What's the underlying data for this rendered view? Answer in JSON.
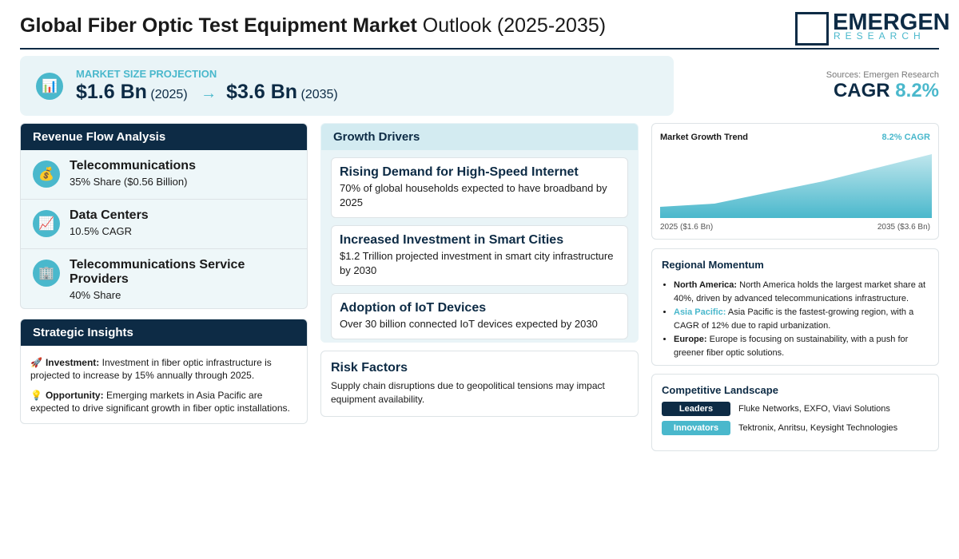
{
  "header": {
    "title_bold": "Global Fiber Optic Test Equipment Market",
    "title_rest": "Outlook (2025-2035)",
    "logo_main": "EMERGEN",
    "logo_sub": "RESEARCH"
  },
  "projection": {
    "icon": "📊",
    "label": "MARKET SIZE PROJECTION",
    "start_value": "$1.6 Bn",
    "start_year": "(2025)",
    "arrow": "→",
    "end_value": "$3.6 Bn",
    "end_year": "(2035)"
  },
  "summary": {
    "sources": "Sources: Emergen Research",
    "cagr_label": "CAGR",
    "cagr_value": "8.2%"
  },
  "revenue_flow": {
    "title": "Revenue Flow Analysis",
    "items": [
      {
        "icon": "💰",
        "name": "Telecommunications",
        "detail": "35% Share ($0.56 Billion)"
      },
      {
        "icon": "📈",
        "name": "Data Centers",
        "detail": "10.5% CAGR"
      },
      {
        "icon": "🏢",
        "name": "Telecommunications Service Providers",
        "detail": "40% Share"
      }
    ]
  },
  "strategic_insights": {
    "title": "Strategic Insights",
    "items": [
      {
        "icon": "🚀",
        "label": "Investment:",
        "text": "Investment in fiber optic infrastructure is projected to increase by 15% annually through 2025."
      },
      {
        "icon": "💡",
        "label": "Opportunity:",
        "text": "Emerging markets in Asia Pacific are expected to drive significant growth in fiber optic installations."
      }
    ]
  },
  "growth_drivers": {
    "title": "Growth Drivers",
    "items": [
      {
        "title": "Rising Demand for High-Speed Internet",
        "text": "70% of global households expected to have broadband by 2025"
      },
      {
        "title": "Increased Investment in Smart Cities",
        "text": "$1.2 Trillion projected investment in smart city infrastructure by 2030"
      },
      {
        "title": "Adoption of IoT Devices",
        "text": "Over 30 billion connected IoT devices expected by 2030"
      }
    ]
  },
  "risk_factors": {
    "title": "Risk Factors",
    "text": "Supply chain disruptions due to geopolitical tensions may impact equipment availability."
  },
  "market_trend": {
    "title": "Market Growth Trend",
    "badge": "8.2% CAGR",
    "start_label": "2025 ($1.6 Bn)",
    "end_label": "2035 ($3.6 Bn)"
  },
  "regional_momentum": {
    "title": "Regional Momentum",
    "items": [
      {
        "region": "North America:",
        "text": "North America holds the largest market share at 40%, driven by advanced telecommunications infrastructure."
      },
      {
        "region": "Asia Pacific:",
        "text": "Asia Pacific is the fastest-growing region, with a CAGR of 12% due to rapid urbanization."
      },
      {
        "region": "Europe:",
        "text": "Europe is focusing on sustainability, with a push for greener fiber optic solutions."
      }
    ]
  },
  "competitive_landscape": {
    "title": "Competitive Landscape",
    "rows": [
      {
        "tag": "Leaders",
        "companies": "Fluke Networks, EXFO, Viavi Solutions"
      },
      {
        "tag": "Innovators",
        "companies": "Tektronix, Anritsu, Keysight Technologies"
      }
    ]
  }
}
